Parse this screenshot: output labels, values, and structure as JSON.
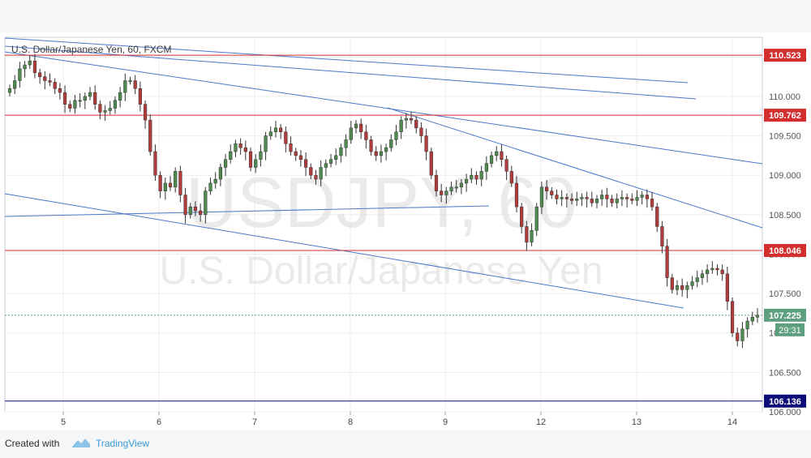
{
  "chart_data": {
    "type": "candlestick",
    "title": "U.S. Dollar/Japanese Yen, 60, FXCM",
    "watermark_symbol": "USDJPY, 60",
    "watermark_name": "U.S. Dollar/Japanese Yen",
    "x_ticks": [
      "5",
      "6",
      "7",
      "8",
      "9",
      "12",
      "13",
      "14"
    ],
    "ylim": [
      106.0,
      110.75
    ],
    "y_ticks": [
      "106.000",
      "106.500",
      "107.000",
      "107.500",
      "108.000",
      "108.500",
      "109.000",
      "109.500",
      "110.000",
      "110.500"
    ],
    "grid": true,
    "horizontal_lines": [
      {
        "value": 110.523,
        "label": "110.523",
        "color": "#d32f2f"
      },
      {
        "value": 109.762,
        "label": "109.762",
        "color": "#d32f2f"
      },
      {
        "value": 108.046,
        "label": "108.046",
        "color": "#d32f2f"
      },
      {
        "value": 106.136,
        "label": "106.136",
        "color": "#0b0b7a"
      }
    ],
    "current_price": {
      "value": 107.225,
      "label": "107.225",
      "countdown": "29:31",
      "color": "#5e9f7f"
    },
    "colors": {
      "up": "#4f8a4f",
      "down": "#b23b3b",
      "trendline": "#4a78c8"
    },
    "candles_close": [
      110.1,
      110.2,
      110.35,
      110.4,
      110.45,
      110.3,
      110.25,
      110.2,
      110.18,
      110.1,
      110.05,
      109.9,
      109.85,
      109.95,
      109.95,
      110.0,
      110.05,
      109.9,
      109.8,
      109.82,
      109.85,
      109.95,
      110.05,
      110.2,
      110.2,
      110.1,
      109.9,
      109.7,
      109.3,
      109.0,
      108.8,
      108.9,
      108.85,
      109.05,
      108.75,
      108.5,
      108.6,
      108.55,
      108.5,
      108.8,
      108.9,
      108.95,
      109.1,
      109.2,
      109.3,
      109.4,
      109.35,
      109.3,
      109.1,
      109.2,
      109.3,
      109.5,
      109.55,
      109.6,
      109.55,
      109.4,
      109.3,
      109.25,
      109.2,
      109.1,
      109.0,
      108.95,
      109.1,
      109.15,
      109.2,
      109.25,
      109.35,
      109.45,
      109.6,
      109.65,
      109.55,
      109.45,
      109.3,
      109.25,
      109.3,
      109.35,
      109.45,
      109.55,
      109.7,
      109.72,
      109.7,
      109.6,
      109.5,
      109.3,
      109.0,
      108.8,
      108.75,
      108.8,
      108.85,
      108.85,
      108.9,
      108.95,
      109.0,
      108.95,
      109.05,
      109.15,
      109.25,
      109.3,
      109.2,
      109.05,
      108.9,
      108.6,
      108.35,
      108.15,
      108.3,
      108.6,
      108.85,
      108.8,
      108.75,
      108.7,
      108.72,
      108.7,
      108.68,
      108.7,
      108.72,
      108.7,
      108.65,
      108.7,
      108.75,
      108.7,
      108.65,
      108.7,
      108.72,
      108.7,
      108.68,
      108.72,
      108.75,
      108.7,
      108.6,
      108.35,
      108.1,
      107.7,
      107.55,
      107.6,
      107.55,
      107.6,
      107.65,
      107.7,
      107.75,
      107.8,
      107.82,
      107.8,
      107.75,
      107.4,
      107.0,
      106.9,
      107.05,
      107.15,
      107.2,
      107.225
    ]
  },
  "footer": {
    "created_with": "Created with",
    "brand": "TradingView"
  }
}
